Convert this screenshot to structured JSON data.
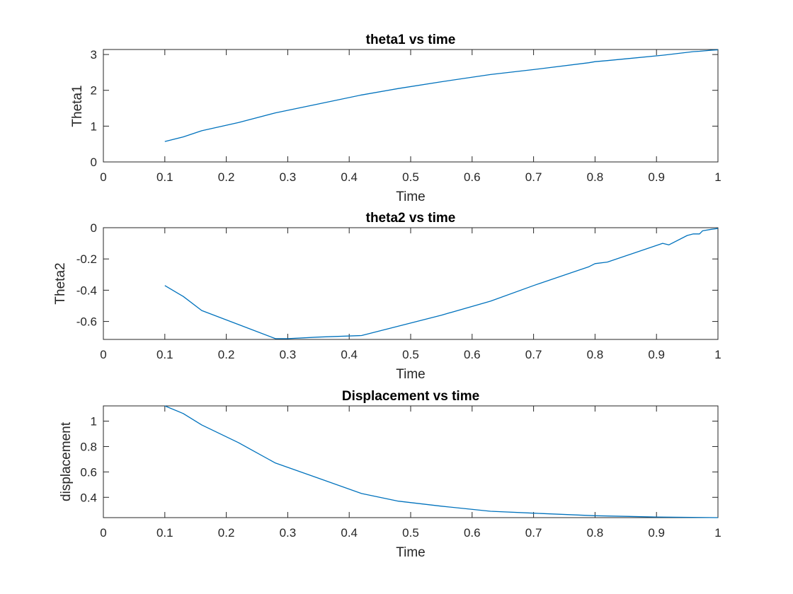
{
  "chart_data": [
    {
      "type": "line",
      "title": "theta1 vs time",
      "xlabel": "Time",
      "ylabel": "Theta1",
      "xlim": [
        0,
        1
      ],
      "ylim": [
        0,
        3.14
      ],
      "xticks": [
        0,
        0.1,
        0.2,
        0.3,
        0.4,
        0.5,
        0.6,
        0.7,
        0.8,
        0.9,
        1
      ],
      "xtick_labels": [
        "0",
        "0.1",
        "0.2",
        "0.3",
        "0.4",
        "0.5",
        "0.6",
        "0.7",
        "0.8",
        "0.9",
        "1"
      ],
      "yticks": [
        0,
        1,
        2,
        3
      ],
      "ytick_labels": [
        "0",
        "1",
        "2",
        "3"
      ],
      "grid": false,
      "color": "#0072bd",
      "x": [
        0.1,
        0.13,
        0.16,
        0.22,
        0.28,
        0.35,
        0.42,
        0.48,
        0.55,
        0.63,
        0.7,
        0.79,
        0.8,
        0.82,
        0.91,
        0.92,
        0.96,
        0.97,
        0.99,
        1.0
      ],
      "y": [
        0.57,
        0.7,
        0.87,
        1.1,
        1.37,
        1.62,
        1.87,
        2.05,
        2.24,
        2.44,
        2.58,
        2.77,
        2.8,
        2.83,
        2.98,
        3.0,
        3.08,
        3.09,
        3.12,
        3.13
      ]
    },
    {
      "type": "line",
      "title": "theta2 vs time",
      "xlabel": "Time",
      "ylabel": "Theta2",
      "xlim": [
        0,
        1
      ],
      "ylim": [
        -0.715,
        0
      ],
      "xticks": [
        0,
        0.1,
        0.2,
        0.3,
        0.4,
        0.5,
        0.6,
        0.7,
        0.8,
        0.9,
        1
      ],
      "xtick_labels": [
        "0",
        "0.1",
        "0.2",
        "0.3",
        "0.4",
        "0.5",
        "0.6",
        "0.7",
        "0.8",
        "0.9",
        "1"
      ],
      "yticks": [
        -0.6,
        -0.4,
        -0.2,
        0
      ],
      "ytick_labels": [
        "-0.6",
        "-0.4",
        "-0.2",
        "0"
      ],
      "grid": false,
      "color": "#0072bd",
      "x": [
        0.1,
        0.13,
        0.16,
        0.22,
        0.28,
        0.3,
        0.35,
        0.42,
        0.48,
        0.55,
        0.63,
        0.7,
        0.79,
        0.8,
        0.82,
        0.91,
        0.92,
        0.95,
        0.96,
        0.97,
        0.975,
        0.99,
        1.0
      ],
      "y": [
        -0.37,
        -0.44,
        -0.53,
        -0.62,
        -0.71,
        -0.71,
        -0.7,
        -0.69,
        -0.63,
        -0.56,
        -0.47,
        -0.37,
        -0.25,
        -0.23,
        -0.22,
        -0.1,
        -0.11,
        -0.05,
        -0.04,
        -0.04,
        -0.02,
        -0.01,
        -0.005
      ]
    },
    {
      "type": "line",
      "title": "Displacement vs time",
      "xlabel": "Time",
      "ylabel": "displacement",
      "xlim": [
        0,
        1
      ],
      "ylim": [
        0.24,
        1.12
      ],
      "xticks": [
        0,
        0.1,
        0.2,
        0.3,
        0.4,
        0.5,
        0.6,
        0.7,
        0.8,
        0.9,
        1
      ],
      "xtick_labels": [
        "0",
        "0.1",
        "0.2",
        "0.3",
        "0.4",
        "0.5",
        "0.6",
        "0.7",
        "0.8",
        "0.9",
        "1"
      ],
      "yticks": [
        0.4,
        0.6,
        0.8,
        1
      ],
      "ytick_labels": [
        "0.4",
        "0.6",
        "0.8",
        "1"
      ],
      "grid": false,
      "color": "#0072bd",
      "x": [
        0.1,
        0.13,
        0.16,
        0.22,
        0.28,
        0.35,
        0.42,
        0.48,
        0.55,
        0.63,
        0.7,
        0.8,
        0.9,
        1.0
      ],
      "y": [
        1.12,
        1.06,
        0.97,
        0.83,
        0.67,
        0.55,
        0.43,
        0.37,
        0.33,
        0.29,
        0.275,
        0.255,
        0.245,
        0.24
      ]
    }
  ]
}
